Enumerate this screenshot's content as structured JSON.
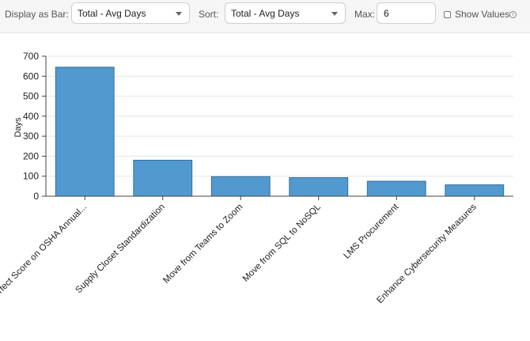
{
  "toolbar": {
    "display_label": "Display as Bar:",
    "display_value": "Total - Avg Days",
    "sort_label": "Sort:",
    "sort_value": "Total - Avg Days",
    "max_label": "Max:",
    "max_value": "6",
    "show_values_label": "Show Values",
    "show_values_checked": false,
    "info_glyph": "i"
  },
  "chart_data": {
    "type": "bar",
    "ylabel": "Days",
    "ylim": [
      0,
      700
    ],
    "yticks": [
      0,
      100,
      200,
      300,
      400,
      500,
      600,
      700
    ],
    "grid": true,
    "bar_color": "#5199cf",
    "bar_border_color": "#3b6f99",
    "categories": [
      "Achieve Perfect Score on OSHA Annual...",
      "Supply Closet Standardization",
      "Move from Teams to Zoom",
      "Move from SQL to NoSQL",
      "LMS Procurement",
      "Enhance Cybersecurity Measures"
    ],
    "values": [
      645,
      180,
      98,
      93,
      75,
      57
    ]
  }
}
